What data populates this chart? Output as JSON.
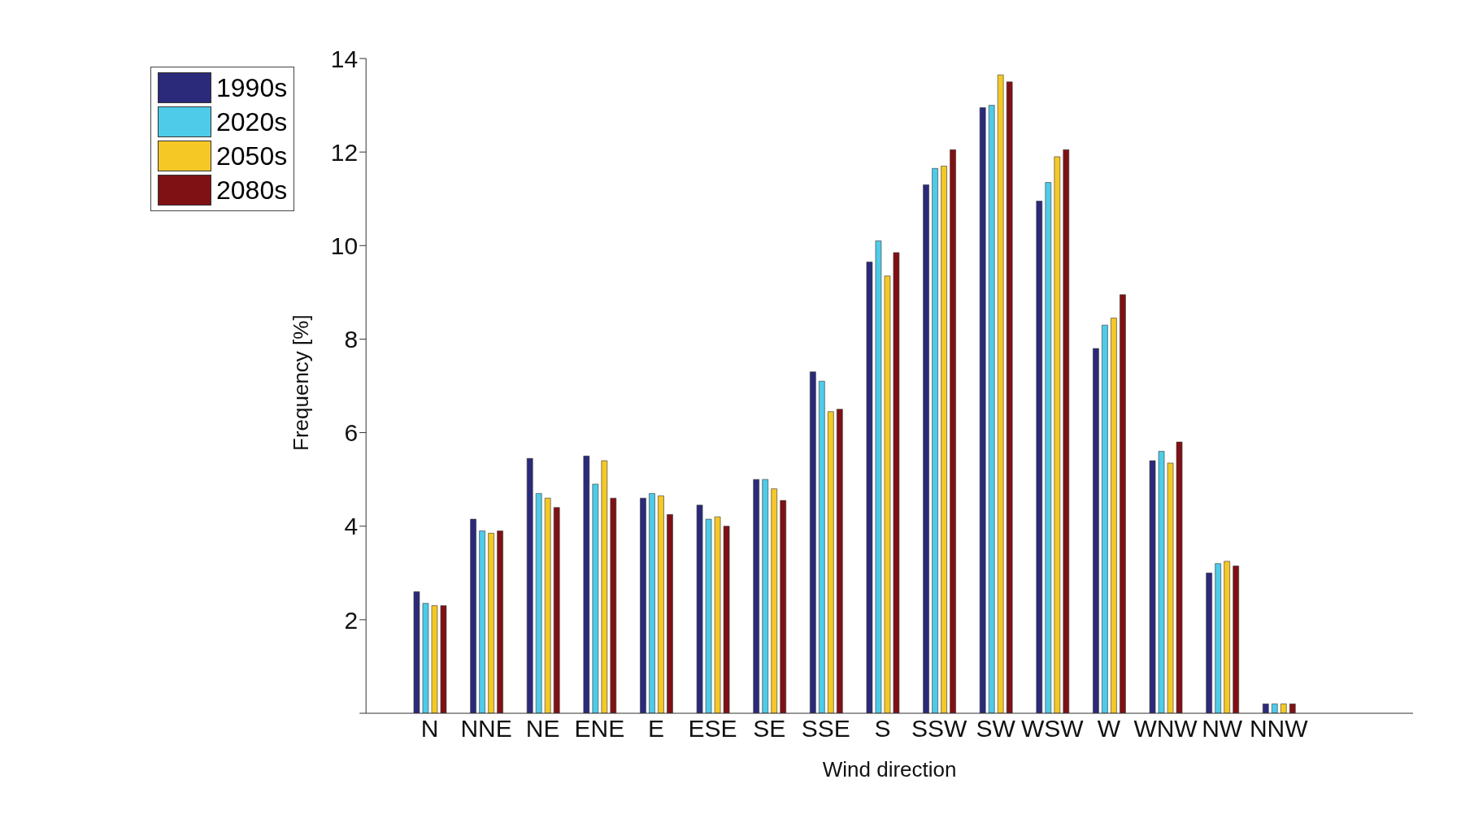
{
  "chart_data": {
    "type": "bar",
    "xlabel": "Wind direction",
    "ylabel": "Frequency [%]",
    "categories": [
      "N",
      "NNE",
      "NE",
      "ENE",
      "E",
      "ESE",
      "SE",
      "SSE",
      "S",
      "SSW",
      "SW",
      "WSW",
      "W",
      "WNW",
      "NW",
      "NNW"
    ],
    "series": [
      {
        "name": "1990s",
        "color": "#2b2a7a",
        "values": [
          2.6,
          4.15,
          5.45,
          5.5,
          4.6,
          4.45,
          5.0,
          7.3,
          9.65,
          11.3,
          12.95,
          10.95,
          7.8,
          5.4,
          3.0,
          0.2
        ]
      },
      {
        "name": "2020s",
        "color": "#4ecbe8",
        "values": [
          2.35,
          3.9,
          4.7,
          4.9,
          4.7,
          4.15,
          5.0,
          7.1,
          10.1,
          11.65,
          13.0,
          11.35,
          8.3,
          5.6,
          3.2,
          0.2
        ]
      },
      {
        "name": "2050s",
        "color": "#f5c826",
        "values": [
          2.3,
          3.85,
          4.6,
          5.4,
          4.65,
          4.2,
          4.8,
          6.45,
          9.35,
          11.7,
          13.65,
          11.9,
          8.45,
          5.35,
          3.25,
          0.2
        ]
      },
      {
        "name": "2080s",
        "color": "#7f1115",
        "values": [
          2.3,
          3.9,
          4.4,
          4.6,
          4.25,
          4.0,
          4.55,
          6.5,
          9.85,
          12.05,
          13.5,
          12.05,
          8.95,
          5.8,
          3.15,
          0.2
        ]
      }
    ],
    "ylim": [
      0,
      14
    ],
    "yticks": [
      {
        "value": 0,
        "label": null
      },
      2,
      4,
      6,
      8,
      10,
      12,
      14
    ],
    "legend": "top left"
  }
}
